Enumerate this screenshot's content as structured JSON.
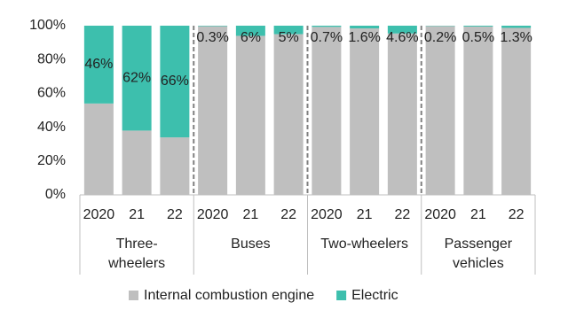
{
  "chart_data": {
    "type": "bar",
    "stacked": true,
    "groups": [
      {
        "label": [
          "Three-",
          "wheelers"
        ],
        "categories": [
          "2020",
          "21",
          "22"
        ]
      },
      {
        "label": [
          "Buses"
        ],
        "categories": [
          "2020",
          "21",
          "22"
        ]
      },
      {
        "label": [
          "Two-wheelers"
        ],
        "categories": [
          "2020",
          "21",
          "22"
        ]
      },
      {
        "label": [
          "Passenger",
          "vehicles"
        ],
        "categories": [
          "2020",
          "21",
          "22"
        ]
      }
    ],
    "series": [
      {
        "name": "Internal combustion engine",
        "color": "#bfbfbf",
        "values": [
          54,
          38,
          34,
          99.7,
          94,
          95,
          99.3,
          98.4,
          95.4,
          99.8,
          99.5,
          98.7
        ]
      },
      {
        "name": "Electric",
        "color": "#3dbfad",
        "values": [
          46,
          62,
          66,
          0.3,
          6,
          5,
          0.7,
          1.6,
          4.6,
          0.2,
          0.5,
          1.3
        ],
        "value_labels": [
          "46%",
          "62%",
          "66%",
          "0.3%",
          "6%",
          "5%",
          "0.7%",
          "1.6%",
          "4.6%",
          "0.2%",
          "0.5%",
          "1.3%"
        ]
      }
    ],
    "ylim": [
      0,
      100
    ],
    "yticks": [
      {
        "value": 0,
        "label": "0%"
      },
      {
        "value": 20,
        "label": "20%"
      },
      {
        "value": 40,
        "label": "40%"
      },
      {
        "value": 60,
        "label": "60%"
      },
      {
        "value": 80,
        "label": "80%"
      },
      {
        "value": 100,
        "label": "100%"
      }
    ],
    "legend": "bottom"
  }
}
